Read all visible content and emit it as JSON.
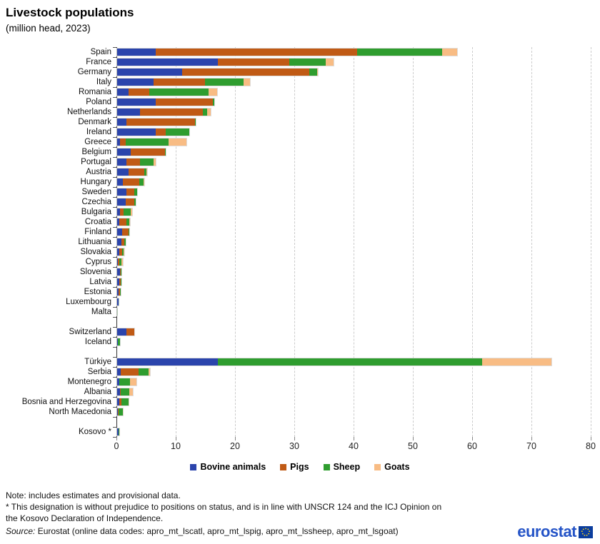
{
  "header": {
    "title": "Livestock populations",
    "subtitle": "(million head, 2023)"
  },
  "chart_data": {
    "type": "bar",
    "orientation": "horizontal",
    "stacked": true,
    "title": "Livestock populations",
    "subtitle": "(million head, 2023)",
    "unit": "million head",
    "year": "2023",
    "xlabel": "",
    "ylabel": "",
    "xlim": [
      0,
      80
    ],
    "xticks": [
      0,
      10,
      20,
      30,
      40,
      50,
      60,
      70,
      80
    ],
    "grid": "vertical dashed",
    "legend_position": "bottom center",
    "series": [
      {
        "name": "Bovine animals",
        "color": "#2B44AC"
      },
      {
        "name": "Pigs",
        "color": "#C05A15"
      },
      {
        "name": "Sheep",
        "color": "#2F9D2F"
      },
      {
        "name": "Goats",
        "color": "#F8BC84"
      }
    ],
    "rows": [
      {
        "label": "Spain",
        "values": [
          6.5,
          34.0,
          14.3,
          2.5
        ]
      },
      {
        "label": "France",
        "values": [
          17.0,
          12.0,
          6.2,
          1.3
        ]
      },
      {
        "label": "Germany",
        "values": [
          11.0,
          21.4,
          1.4,
          0.1
        ]
      },
      {
        "label": "Italy",
        "values": [
          6.1,
          8.7,
          6.5,
          1.1
        ]
      },
      {
        "label": "Romania",
        "values": [
          1.9,
          3.5,
          10.0,
          1.5
        ]
      },
      {
        "label": "Poland",
        "values": [
          6.5,
          9.6,
          0.3,
          0
        ]
      },
      {
        "label": "Netherlands",
        "values": [
          3.9,
          10.6,
          0.7,
          0.6
        ]
      },
      {
        "label": "Denmark",
        "values": [
          1.5,
          11.6,
          0.1,
          0
        ]
      },
      {
        "label": "Ireland",
        "values": [
          6.5,
          1.7,
          4.0,
          0
        ]
      },
      {
        "label": "Greece",
        "values": [
          0.5,
          0.9,
          7.3,
          3.0
        ]
      },
      {
        "label": "Belgium",
        "values": [
          2.3,
          5.8,
          0.1,
          0
        ]
      },
      {
        "label": "Portugal",
        "values": [
          1.6,
          2.2,
          2.3,
          0.4
        ]
      },
      {
        "label": "Austria",
        "values": [
          1.9,
          2.7,
          0.4,
          0.1
        ]
      },
      {
        "label": "Hungary",
        "values": [
          1.0,
          2.7,
          0.8,
          0.1
        ]
      },
      {
        "label": "Sweden",
        "values": [
          1.5,
          1.4,
          0.45,
          0
        ]
      },
      {
        "label": "Czechia",
        "values": [
          1.4,
          1.5,
          0.2,
          0
        ]
      },
      {
        "label": "Bulgaria",
        "values": [
          0.5,
          0.6,
          1.2,
          0.25
        ]
      },
      {
        "label": "Croatia",
        "values": [
          0.4,
          1.2,
          0.5,
          0.1
        ]
      },
      {
        "label": "Finland",
        "values": [
          0.8,
          1.1,
          0.15,
          0
        ]
      },
      {
        "label": "Lithuania",
        "values": [
          0.75,
          0.5,
          0.15,
          0
        ]
      },
      {
        "label": "Slovakia",
        "values": [
          0.4,
          0.45,
          0.3,
          0.03
        ]
      },
      {
        "label": "Cyprus",
        "values": [
          0.08,
          0.33,
          0.35,
          0.27
        ]
      },
      {
        "label": "Slovenia",
        "values": [
          0.47,
          0.18,
          0.1,
          0.03
        ]
      },
      {
        "label": "Latvia",
        "values": [
          0.36,
          0.28,
          0.07,
          0
        ]
      },
      {
        "label": "Estonia",
        "values": [
          0.24,
          0.27,
          0.05,
          0
        ]
      },
      {
        "label": "Luxembourg",
        "values": [
          0.18,
          0.06,
          0.01,
          0
        ]
      },
      {
        "label": "Malta",
        "values": [
          0.01,
          0.03,
          0.01,
          0
        ]
      },
      {
        "spacer": true
      },
      {
        "label": "Switzerland",
        "values": [
          1.55,
          1.35,
          0,
          0
        ]
      },
      {
        "label": "Iceland",
        "values": [
          0.08,
          0,
          0.37,
          0
        ]
      },
      {
        "spacer": true
      },
      {
        "label": "Türkiye",
        "values": [
          17.0,
          0,
          44.6,
          11.6
        ]
      },
      {
        "label": "Serbia",
        "values": [
          0.65,
          3.0,
          1.65,
          0.25
        ]
      },
      {
        "label": "Montenegro",
        "values": [
          0.3,
          0.05,
          1.8,
          1.1
        ]
      },
      {
        "label": "Albania",
        "values": [
          0.5,
          0.05,
          1.5,
          0.55
        ]
      },
      {
        "label": "Bosnia and Herzegovina",
        "values": [
          0.35,
          0.35,
          1.2,
          0.05
        ]
      },
      {
        "label": "North Macedonia",
        "values": [
          0.15,
          0.1,
          0.7,
          0.05
        ]
      },
      {
        "spacer": true
      },
      {
        "label": "Kosovo *",
        "values": [
          0.18,
          0.02,
          0.18,
          0.02
        ]
      }
    ]
  },
  "notes": {
    "line1": "Note: includes estimates and provisional data.",
    "line2": "* This designation is without prejudice to positions on status, and is in line with UNSCR 124 and the ICJ Opinion on",
    "line3": "the Kosovo Declaration of Independence.",
    "source_prefix": "Source:",
    "source_text": " Eurostat (online data codes: apro_mt_lscatl, apro_mt_lspig, apro_mt_lssheep, apro_mt_lsgoat)"
  },
  "logo": {
    "text": "eurostat"
  }
}
